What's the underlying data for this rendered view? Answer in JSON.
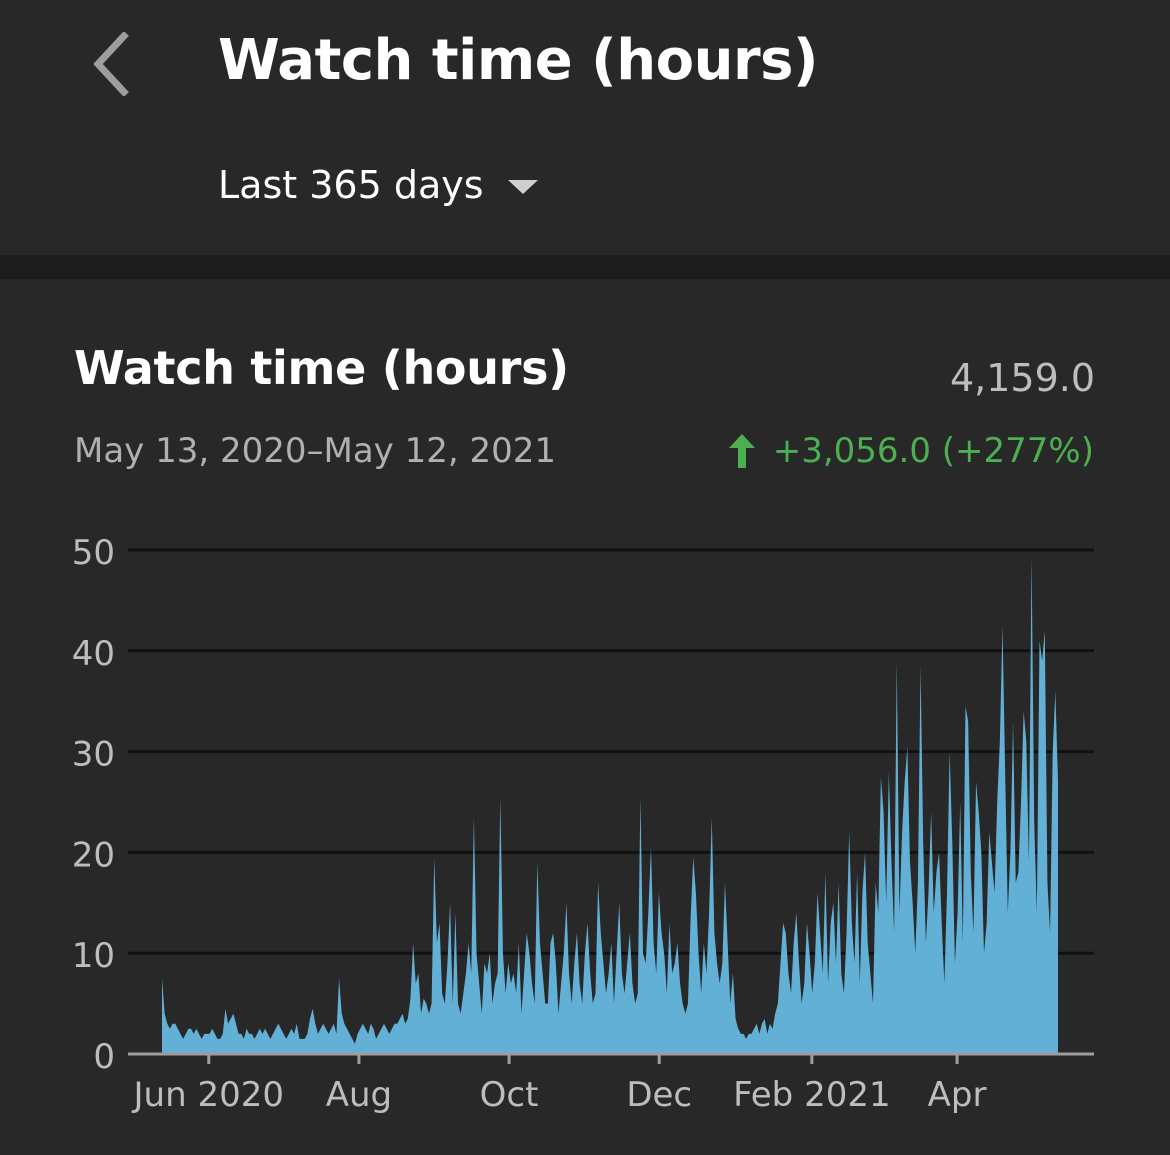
{
  "header": {
    "title": "Watch time (hours)",
    "range_label": "Last 365 days"
  },
  "card": {
    "title": "Watch time (hours)",
    "total": "4,159.0",
    "date_range": "May 13, 2020–May 12, 2021",
    "change": "+3,056.0 (+277%)"
  },
  "colors": {
    "background": "#282828",
    "area_fill": "#63b0d6",
    "positive_change": "#4caf50",
    "gridline": "#111111"
  },
  "chart_data": {
    "type": "area",
    "title": "",
    "xlabel": "",
    "ylabel": "",
    "ylim": [
      0,
      50
    ],
    "y_ticks": [
      "0",
      "10",
      "20",
      "30",
      "40",
      "50"
    ],
    "x_ticks": [
      {
        "label": "Jun 2020",
        "date": "2020-06-01"
      },
      {
        "label": "Aug",
        "date": "2020-08-01"
      },
      {
        "label": "Oct",
        "date": "2020-10-01"
      },
      {
        "label": "Dec",
        "date": "2020-12-01"
      },
      {
        "label": "Feb 2021",
        "date": "2021-02-01"
      },
      {
        "label": "Apr",
        "date": "2021-04-01"
      }
    ],
    "grid": true,
    "x_start": "2020-05-13",
    "x_end": "2021-05-12",
    "series": [
      {
        "values": [
          7.5,
          4,
          3,
          2.5,
          3,
          3,
          2.5,
          2,
          1.5,
          2,
          2.5,
          2.5,
          2,
          2.5,
          2,
          1.5,
          2,
          2,
          2,
          2.5,
          2,
          1.5,
          1.5,
          2,
          4.5,
          3,
          3.5,
          4,
          3,
          2,
          2,
          1.5,
          2.5,
          2,
          2,
          1.5,
          2,
          2.5,
          2,
          2.5,
          2,
          1.5,
          2,
          2.5,
          3,
          2.5,
          2,
          1.5,
          2,
          2.5,
          2,
          3,
          1.5,
          1.5,
          1.5,
          2,
          3.5,
          4.5,
          3,
          2,
          2.5,
          3,
          2.5,
          2,
          2.5,
          3,
          2,
          7.5,
          4,
          3,
          2.5,
          2,
          1.5,
          1,
          2,
          2.5,
          3,
          2.5,
          2,
          3,
          2.5,
          1.5,
          2,
          2.5,
          3,
          2.5,
          2,
          2.5,
          3,
          3,
          3.5,
          4,
          3,
          3.5,
          5.5,
          11,
          7,
          8,
          4,
          5.5,
          5,
          4,
          5,
          19.5,
          11,
          13,
          6,
          5,
          9,
          15,
          5,
          14,
          5,
          4,
          6,
          8,
          11,
          8,
          23.5,
          10,
          7,
          4,
          9,
          8,
          10,
          5,
          7,
          8,
          25.5,
          10,
          6,
          9,
          7,
          8,
          6,
          11,
          4,
          8,
          12,
          10,
          7,
          5,
          19,
          11,
          8,
          5,
          5,
          11,
          12,
          9,
          4,
          7,
          10,
          15,
          8,
          5,
          9,
          12,
          7,
          5,
          10,
          13,
          8,
          5,
          6,
          17,
          12,
          9,
          6,
          8,
          11,
          5,
          10,
          15,
          8,
          6,
          9,
          12,
          7,
          5,
          6,
          25.5,
          10,
          9,
          14,
          20.5,
          11,
          8,
          16,
          12,
          10,
          6,
          13,
          8,
          9,
          11,
          7,
          5,
          4,
          5,
          13.5,
          19.5,
          16,
          10,
          6,
          11,
          8,
          14,
          23.5,
          12,
          9,
          7,
          9,
          17,
          11,
          5,
          8,
          3.5,
          2.5,
          2,
          2,
          1.5,
          2,
          2,
          2.5,
          3,
          2,
          3,
          3.5,
          2,
          3,
          2.5,
          4,
          5,
          9,
          13,
          12,
          8,
          6,
          11,
          14,
          9,
          5,
          7,
          13,
          10,
          6,
          9,
          16,
          12,
          8,
          18,
          7,
          13,
          15,
          9,
          17,
          8,
          6,
          12,
          22,
          13,
          9,
          18,
          7,
          16,
          20,
          11,
          8,
          5,
          17,
          14,
          27.5,
          24,
          15,
          28,
          19,
          12,
          39,
          14,
          22,
          27,
          30.5,
          19,
          15,
          10,
          17,
          38.5,
          21,
          11,
          16,
          24,
          14,
          18,
          20,
          13,
          7,
          16,
          30,
          21,
          9,
          14,
          25,
          11,
          34.5,
          33,
          18,
          12,
          27,
          24,
          20,
          10,
          13,
          22,
          19,
          16,
          25,
          31,
          42.5,
          28,
          14,
          20,
          33,
          17,
          18,
          25,
          34,
          31,
          19,
          49.5,
          23,
          14,
          41,
          39,
          42,
          17,
          12,
          30,
          36,
          27
        ]
      }
    ]
  }
}
